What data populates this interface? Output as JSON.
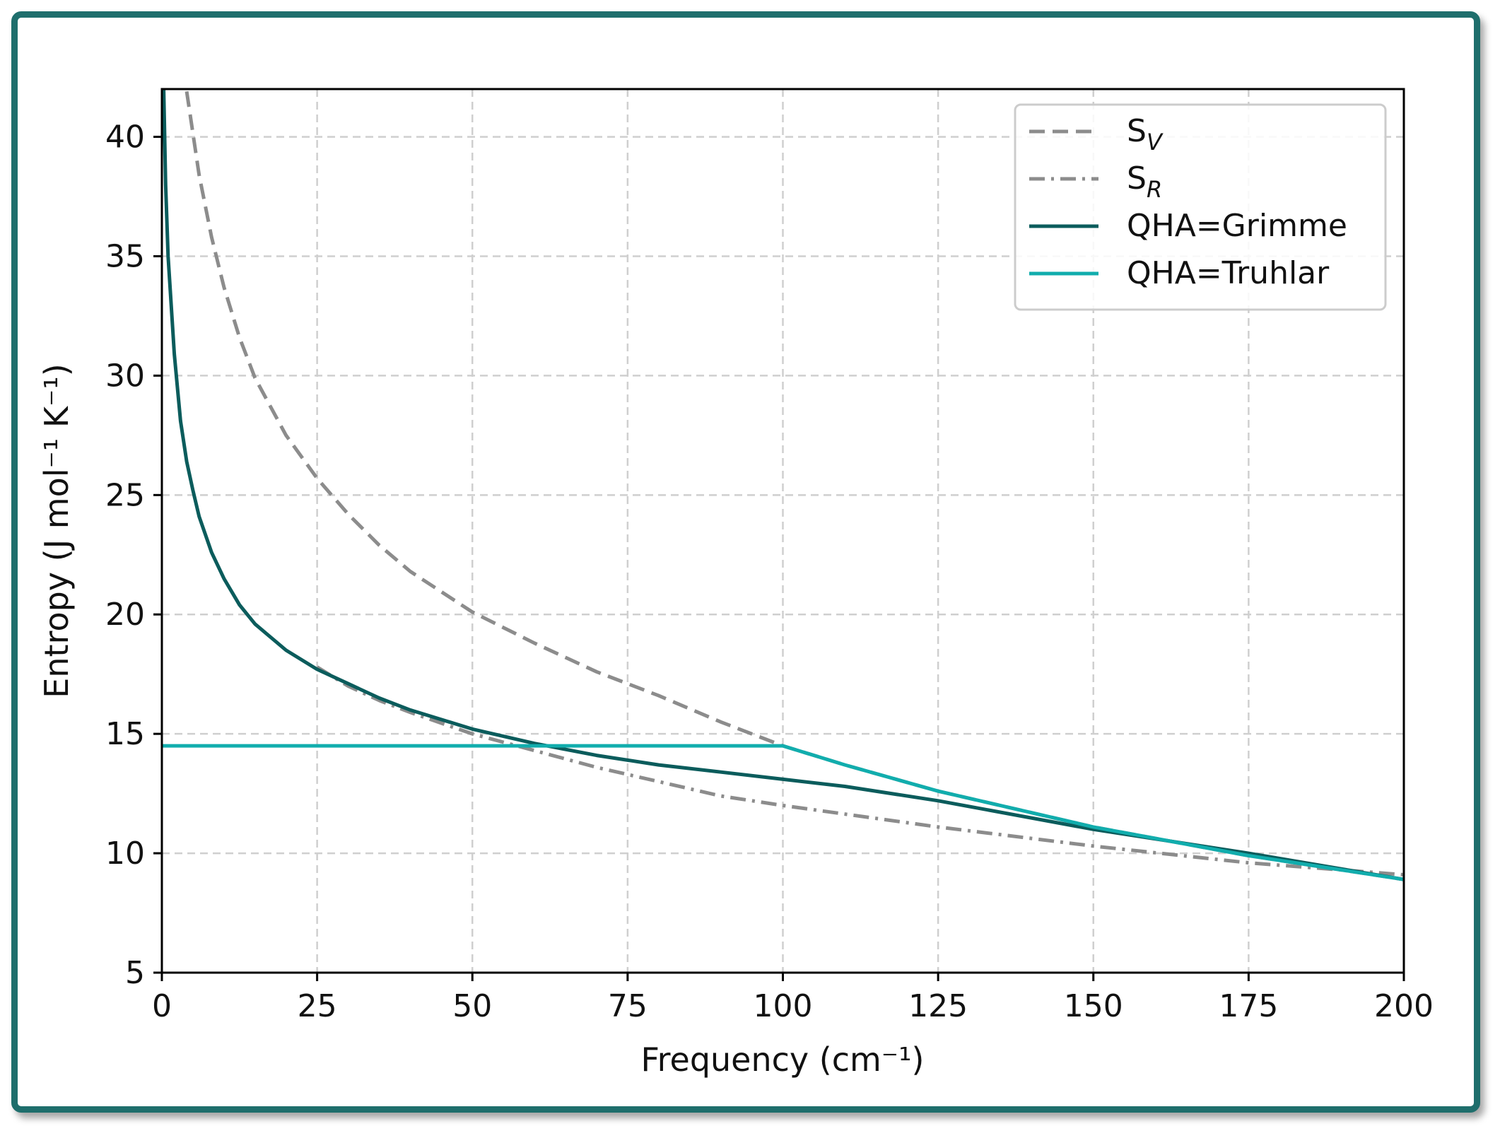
{
  "chart_data": {
    "type": "line",
    "title": "",
    "xlabel": "Frequency (cm⁻¹)",
    "ylabel": "Entropy (J mol⁻¹ K⁻¹)",
    "xlim": [
      0,
      200
    ],
    "ylim": [
      5,
      42
    ],
    "xticks": [
      0,
      25,
      50,
      75,
      100,
      125,
      150,
      175,
      200
    ],
    "xtick_labels": [
      "0",
      "25",
      "50",
      "75",
      "100",
      "125",
      "150",
      "175",
      "200"
    ],
    "yticks": [
      5,
      10,
      15,
      20,
      25,
      30,
      35,
      40
    ],
    "ytick_labels": [
      "5",
      "10",
      "15",
      "20",
      "25",
      "30",
      "35",
      "40"
    ],
    "grid": true,
    "legend_position": "top-right",
    "series": [
      {
        "name": "S",
        "name_subscript": "V",
        "color": "#8c8c8c",
        "line_style": "dashed",
        "x": [
          4,
          6,
          8,
          10,
          12.5,
          15,
          20,
          25,
          30,
          35,
          40,
          50,
          60,
          70,
          80,
          90,
          100,
          110,
          125,
          150,
          175,
          200
        ],
        "y": [
          41.9,
          38.4,
          35.8,
          33.7,
          31.6,
          29.9,
          27.5,
          25.7,
          24.2,
          22.9,
          21.8,
          20.1,
          18.8,
          17.6,
          16.6,
          15.5,
          14.5,
          13.7,
          12.6,
          11.1,
          9.9,
          8.9
        ]
      },
      {
        "name": "S",
        "name_subscript": "R",
        "color": "#8c8c8c",
        "line_style": "dashdot",
        "x": [
          25,
          30,
          35,
          40,
          50,
          60,
          70,
          80,
          90,
          100,
          125,
          150,
          175,
          200
        ],
        "y": [
          17.8,
          17.0,
          16.4,
          15.9,
          15.0,
          14.3,
          13.6,
          13.0,
          12.4,
          12.0,
          11.1,
          10.3,
          9.6,
          9.1
        ]
      },
      {
        "name": "QHA=Grimme",
        "color": "#0b5c5c",
        "line_style": "solid",
        "x": [
          0.3,
          0.6,
          1,
          2,
          3,
          4,
          5,
          6,
          8,
          10,
          12.5,
          15,
          20,
          25,
          30,
          35,
          40,
          50,
          60,
          70,
          80,
          90,
          100,
          110,
          125,
          150,
          175,
          200
        ],
        "y": [
          42,
          38,
          35,
          30.9,
          28.1,
          26.4,
          25.2,
          24.1,
          22.6,
          21.5,
          20.4,
          19.6,
          18.5,
          17.7,
          17.1,
          16.5,
          16.0,
          15.2,
          14.6,
          14.1,
          13.7,
          13.4,
          13.1,
          12.8,
          12.2,
          11.0,
          10.0,
          8.9
        ]
      },
      {
        "name": "QHA=Truhlar",
        "color": "#11adad",
        "line_style": "solid",
        "x": [
          0,
          100,
          110,
          125,
          150,
          175,
          200
        ],
        "y": [
          14.5,
          14.5,
          13.7,
          12.6,
          11.1,
          9.9,
          8.9
        ]
      }
    ]
  }
}
